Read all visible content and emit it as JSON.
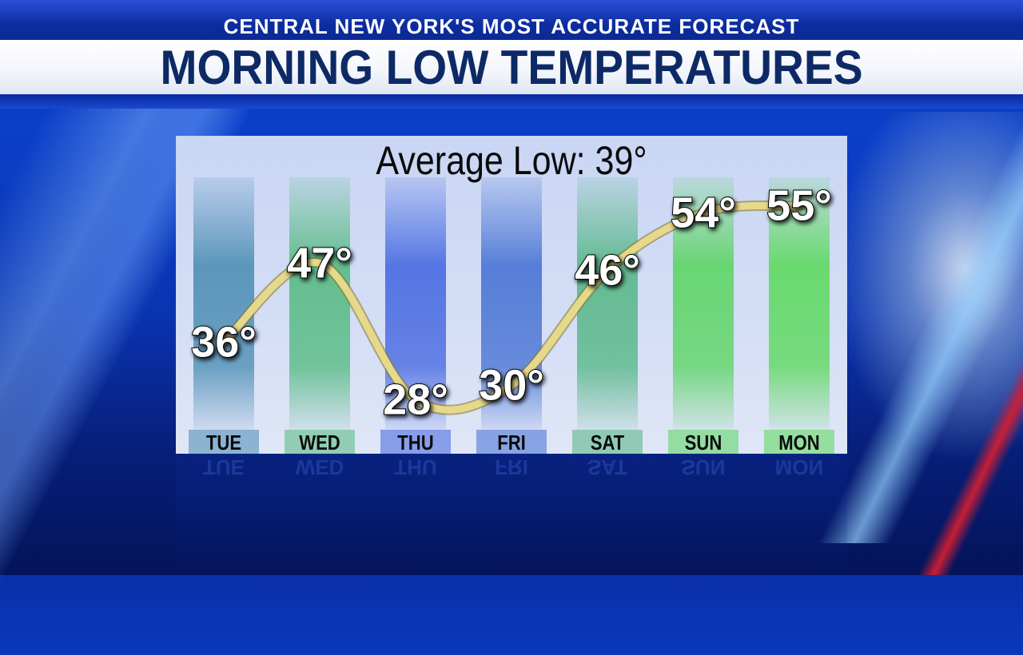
{
  "header": {
    "top_title": "CENTRAL NEW YORK'S MOST ACCURATE FORECAST",
    "main_title": "MORNING LOW TEMPERATURES"
  },
  "chart_data": {
    "type": "bar",
    "title": "Average Low: 39°",
    "categories": [
      "TUE",
      "WED",
      "THU",
      "FRI",
      "SAT",
      "SUN",
      "MON"
    ],
    "values": [
      36,
      47,
      28,
      30,
      46,
      54,
      55
    ],
    "labels": [
      "36°",
      "47°",
      "28°",
      "30°",
      "46°",
      "54°",
      "55°"
    ],
    "overlay": "smooth-line",
    "grid": false,
    "legend": "none",
    "colors": {
      "line": "#e6d98a",
      "bar_blue": "#3f63e0",
      "bar_green": "#57d957",
      "bar_teal": "#2fb4b0"
    }
  }
}
